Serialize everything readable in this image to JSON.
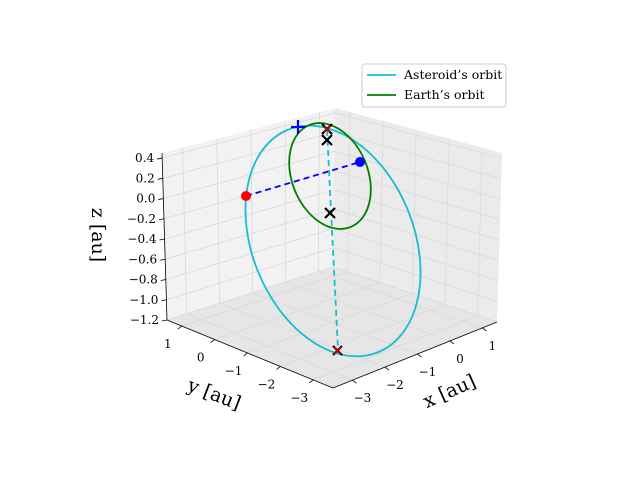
{
  "chart_data": {
    "type": "line",
    "projection": "3d",
    "title": "",
    "axes": {
      "x": {
        "label": "x [au]",
        "ticks": [
          "1",
          "0",
          "−1",
          "−2",
          "−3"
        ],
        "tick_values": [
          1,
          0,
          -1,
          -2,
          -3
        ]
      },
      "y": {
        "label": "y [au]",
        "ticks": [
          "1",
          "0",
          "−1",
          "−2",
          "−3"
        ],
        "tick_values": [
          1,
          0,
          -1,
          -2,
          -3
        ]
      },
      "z": {
        "label": "z [au]",
        "ticks": [
          "0.4",
          "0.2",
          "0.0",
          "−0.2",
          "−0.4",
          "−0.6",
          "−0.8",
          "−1.0",
          "−1.2"
        ],
        "tick_values": [
          0.4,
          0.2,
          0.0,
          -0.2,
          -0.4,
          -0.6,
          -0.8,
          -1.0,
          -1.2
        ]
      }
    },
    "grid": true,
    "legend_position": "top-right",
    "series": [
      {
        "name": "Asteroid’s orbit",
        "color": "#17becf",
        "style": "solid"
      },
      {
        "name": "Earth’s orbit",
        "color": "#008000",
        "style": "solid"
      }
    ],
    "annotations": {
      "red_points": 1,
      "blue_points": 1,
      "cross_markers": 5,
      "plus_markers": 1,
      "dashed_links": [
        "blue",
        "cyan"
      ]
    }
  }
}
